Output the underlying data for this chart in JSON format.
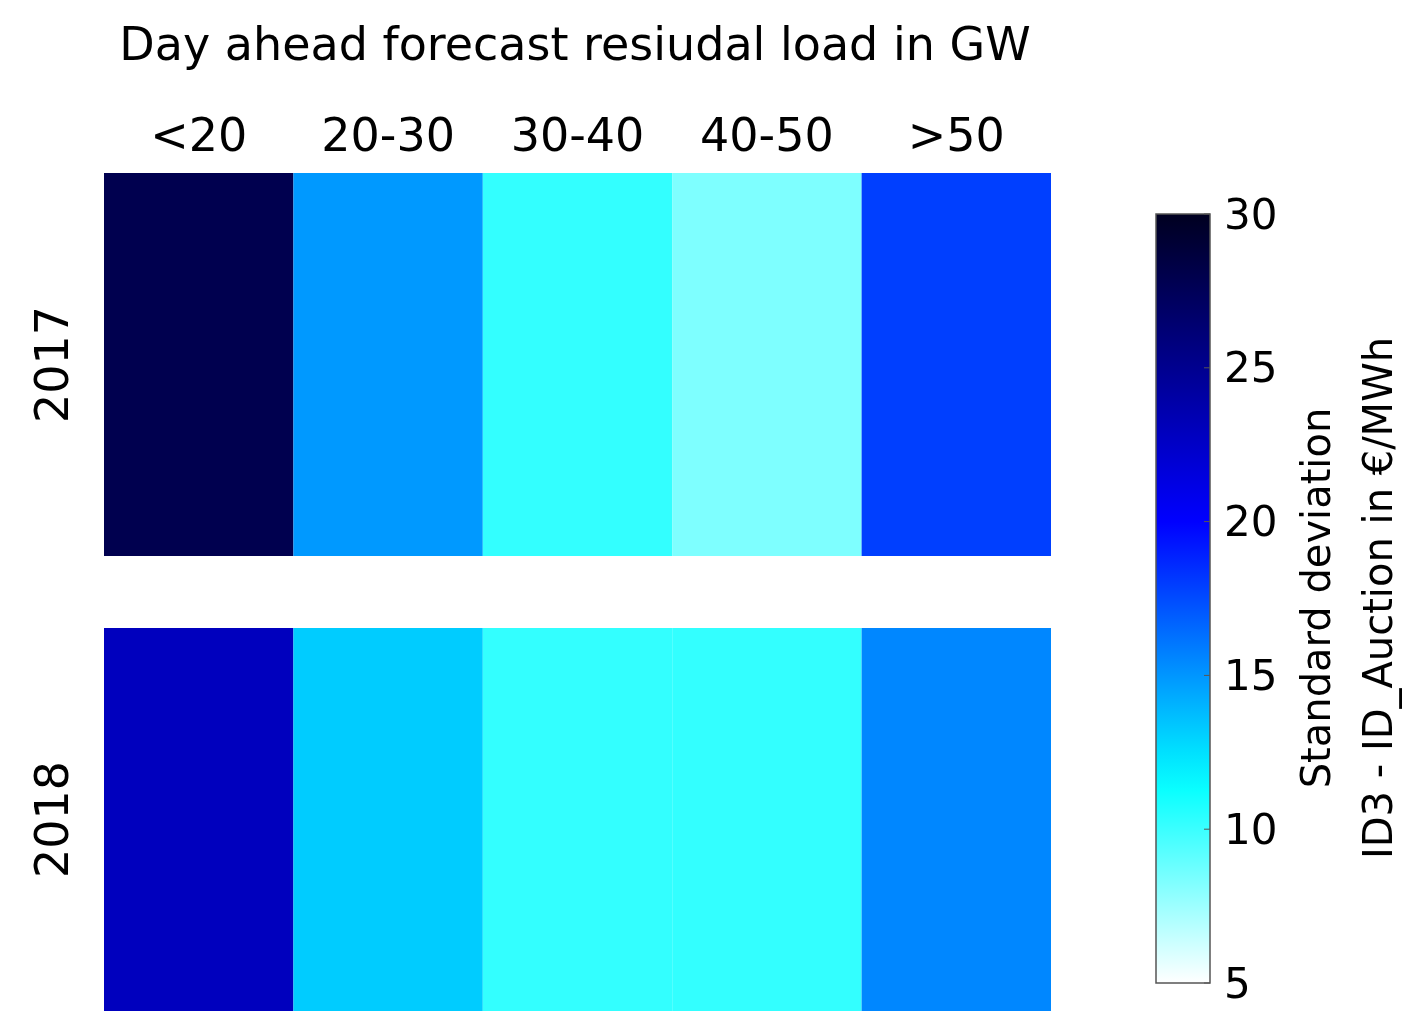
{
  "chart_data": {
    "type": "heatmap",
    "title": "Day ahead forecast resiudal load in GW",
    "categories": [
      "<20",
      "20-30",
      "30-40",
      "40-50",
      ">50"
    ],
    "y_categories": [
      "2017",
      "2018"
    ],
    "cells": [
      [
        27.9,
        14.9,
        10.2,
        8.3,
        17.9
      ],
      [
        22.9,
        13.2,
        10.2,
        10.2,
        15.5
      ]
    ],
    "clim": [
      5,
      30
    ],
    "cticks": [
      5,
      10,
      15,
      20,
      25,
      30
    ],
    "clabel": "Standard deviation\nID3 - ID_Auction in €/MWh"
  }
}
